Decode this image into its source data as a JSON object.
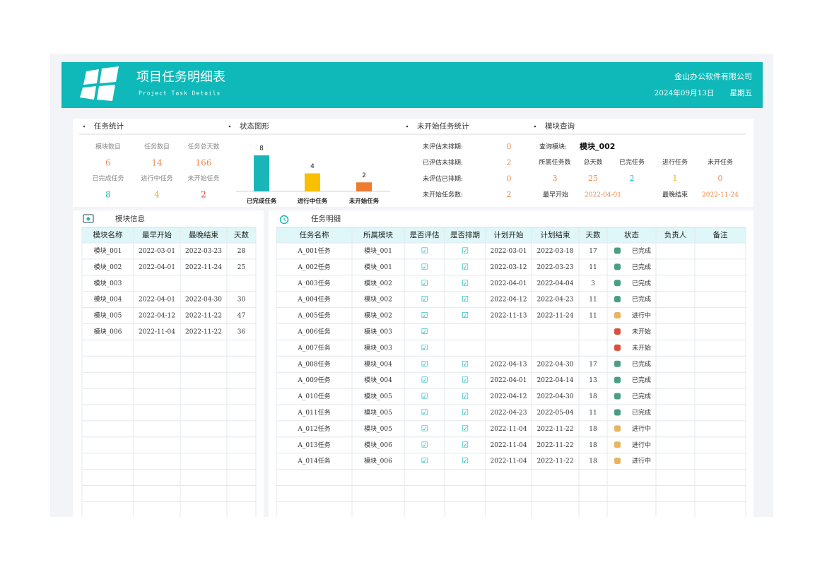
{
  "header": {
    "title": "项目任务明细表",
    "subtitle": "Project Task Details",
    "company": "金山办公软件有限公司",
    "date": "2024年09月13日",
    "weekday": "星期五"
  },
  "task_stats": {
    "title": "任务统计",
    "items": [
      {
        "label": "模块数目",
        "value": 6,
        "color": "#ee8a4a"
      },
      {
        "label": "任务数目",
        "value": 14,
        "color": "#ee8a4a"
      },
      {
        "label": "任务总天数",
        "value": 166,
        "color": "#ee8a4a"
      },
      {
        "label": "已完成任务",
        "value": 8,
        "color": "#19b5b8"
      },
      {
        "label": "进行中任务",
        "value": 4,
        "color": "#f0b400"
      },
      {
        "label": "未开始任务",
        "value": 2,
        "color": "#e0452a"
      }
    ]
  },
  "status_chart": {
    "title": "状态图形",
    "type": "bar",
    "categories": [
      "已完成任务",
      "进行中任务",
      "未开始任务"
    ],
    "values": [
      8,
      4,
      2
    ],
    "colors": [
      "#19b5b8",
      "#f8c000",
      "#ee7b30"
    ]
  },
  "unstarted_stats": {
    "title": "未开始任务统计",
    "color": "#ee8a4a",
    "items": [
      {
        "label": "未评估未排期:",
        "value": 0
      },
      {
        "label": "已评估未排期:",
        "value": 2
      },
      {
        "label": "未评估已排期:",
        "value": 0
      },
      {
        "label": "未开始任务数:",
        "value": 2
      }
    ]
  },
  "module_query": {
    "title": "模块查询",
    "query_label": "查询模块:",
    "query_value": "模块_002",
    "columns": [
      "所属任务数",
      "总天数",
      "已完任务",
      "进行任务",
      "未开任务"
    ],
    "values": [
      3,
      25,
      2,
      1,
      0
    ],
    "value_colors": [
      "#ee8a4a",
      "#ee8a4a",
      "#19b5b8",
      "#f0b400",
      "#ee8a4a"
    ],
    "earliest_label": "最早开始",
    "earliest": "2022-04-01",
    "latest_label": "最晚结束",
    "latest": "2022-11-24",
    "date_color": "#ee8a4a"
  },
  "module_table": {
    "title": "模块信息",
    "columns": [
      "模块名称",
      "最早开始",
      "最晚结束",
      "天数"
    ],
    "rows": [
      [
        "模块_001",
        "2022-03-01",
        "2022-03-23",
        28
      ],
      [
        "模块_002",
        "2022-04-01",
        "2022-11-24",
        25
      ],
      [
        "模块_003",
        null,
        null,
        null
      ],
      [
        "模块_004",
        "2022-04-01",
        "2022-04-30",
        30
      ],
      [
        "模块_005",
        "2022-04-12",
        "2022-11-22",
        47
      ],
      [
        "模块_006",
        "2022-11-04",
        "2022-11-22",
        36
      ]
    ]
  },
  "task_table": {
    "title": "任务明细",
    "columns": [
      "任务名称",
      "所属模块",
      "是否评估",
      "是否排期",
      "计划开始",
      "计划结束",
      "天数",
      "状态",
      "负责人",
      "备注"
    ],
    "status_marks": {
      "已完成": {
        "color": "#4a9e86"
      },
      "进行中": {
        "color": "#e8b460"
      },
      "未开始": {
        "color": "#d9503f"
      }
    },
    "rows": [
      [
        "A_001任务",
        "模块_001",
        "☑",
        "☑",
        "2022-03-01",
        "2022-03-18",
        17,
        "已完成",
        null,
        null
      ],
      [
        "A_002任务",
        "模块_001",
        "☑",
        "☑",
        "2022-03-12",
        "2022-03-23",
        11,
        "已完成",
        null,
        null
      ],
      [
        "A_003任务",
        "模块_002",
        "☑",
        "☑",
        "2022-04-01",
        "2022-04-04",
        3,
        "已完成",
        null,
        null
      ],
      [
        "A_004任务",
        "模块_002",
        "☑",
        "☑",
        "2022-04-12",
        "2022-04-23",
        11,
        "已完成",
        null,
        null
      ],
      [
        "A_005任务",
        "模块_002",
        "☑",
        "☑",
        "2022-11-13",
        "2022-11-24",
        11,
        "进行中",
        null,
        null
      ],
      [
        "A_006任务",
        "模块_003",
        "☑",
        null,
        null,
        null,
        null,
        "未开始",
        null,
        null
      ],
      [
        "A_007任务",
        "模块_003",
        "☑",
        null,
        null,
        null,
        null,
        "未开始",
        null,
        null
      ],
      [
        "A_008任务",
        "模块_004",
        "☑",
        "☑",
        "2022-04-13",
        "2022-04-30",
        17,
        "已完成",
        null,
        null
      ],
      [
        "A_009任务",
        "模块_004",
        "☑",
        "☑",
        "2022-04-01",
        "2022-04-14",
        13,
        "已完成",
        null,
        null
      ],
      [
        "A_010任务",
        "模块_005",
        "☑",
        "☑",
        "2022-04-12",
        "2022-04-30",
        18,
        "已完成",
        null,
        null
      ],
      [
        "A_011任务",
        "模块_005",
        "☑",
        "☑",
        "2022-04-23",
        "2022-05-04",
        11,
        "已完成",
        null,
        null
      ],
      [
        "A_012任务",
        "模块_005",
        "☑",
        "☑",
        "2022-11-04",
        "2022-11-22",
        18,
        "进行中",
        null,
        null
      ],
      [
        "A_013任务",
        "模块_006",
        "☑",
        "☑",
        "2022-11-04",
        "2022-11-22",
        18,
        "进行中",
        null,
        null
      ],
      [
        "A_014任务",
        "模块_006",
        "☑",
        "☑",
        "2022-11-04",
        "2022-11-22",
        18,
        "进行中",
        null,
        null
      ]
    ]
  }
}
